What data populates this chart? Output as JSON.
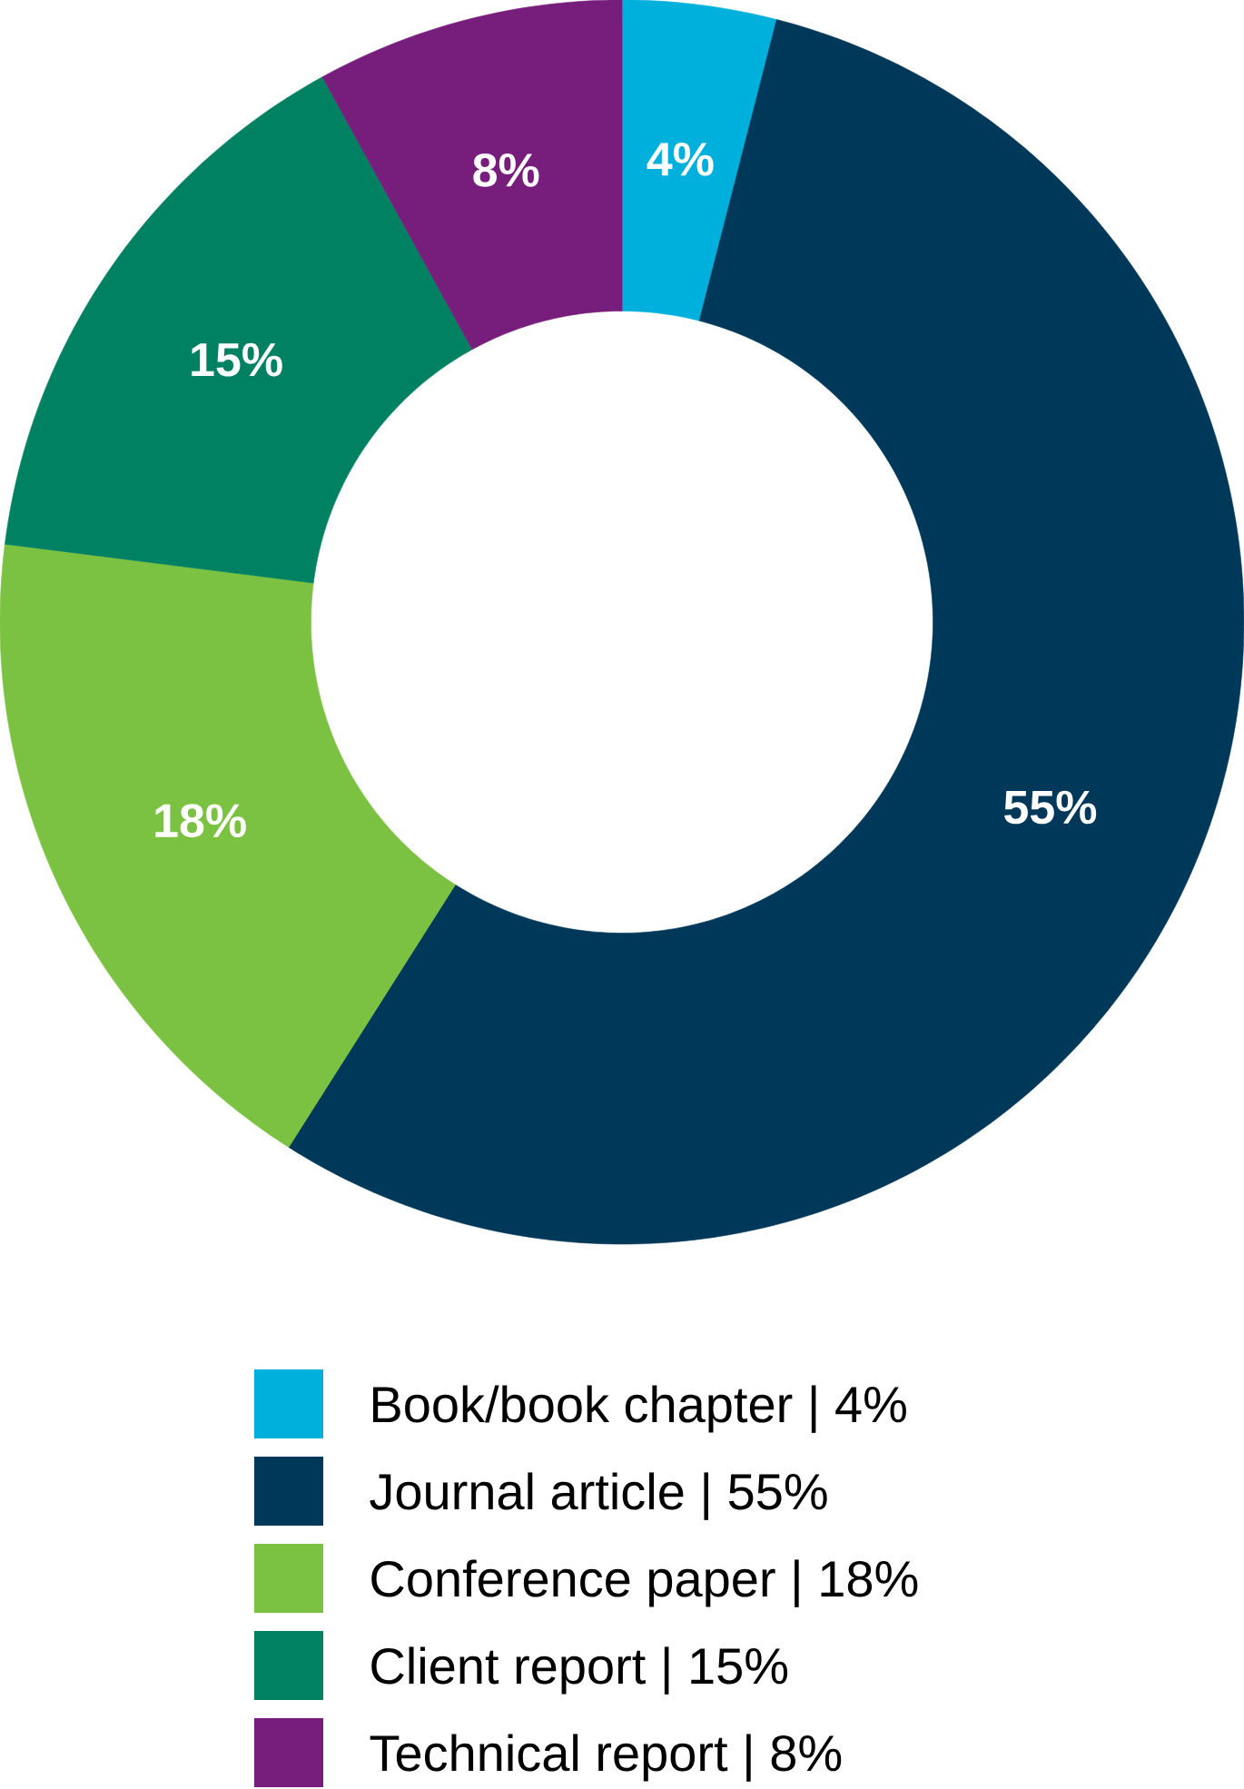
{
  "chart_data": {
    "type": "donut",
    "categories": [
      "Book/book chapter | 4%",
      "Journal article | 55%",
      "Conference paper | 18%",
      "Client report | 15%",
      "Technical report | 8%"
    ],
    "values": [
      4,
      55,
      18,
      15,
      8
    ],
    "colors": [
      "#00b0dc",
      "#00385a",
      "#7cc242",
      "#008262",
      "#771d7b"
    ],
    "value_labels": [
      "4%",
      "55%",
      "18%",
      "15%",
      "8%"
    ],
    "legend": "bottom"
  }
}
